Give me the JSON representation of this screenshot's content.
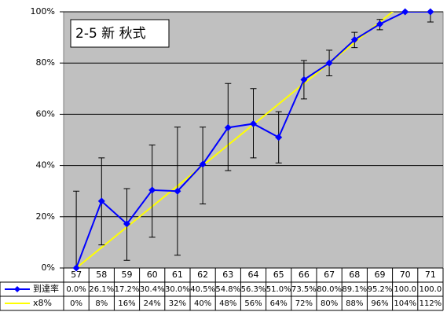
{
  "chart_data": {
    "type": "line",
    "title": "2-5 新 秋式",
    "categories": [
      "57",
      "58",
      "59",
      "60",
      "61",
      "62",
      "63",
      "64",
      "65",
      "66",
      "67",
      "68",
      "69",
      "70",
      "71"
    ],
    "series": [
      {
        "name": "到達率",
        "color": "#0000ff",
        "values": [
          0.0,
          26.1,
          17.2,
          30.4,
          30.0,
          40.5,
          54.8,
          56.3,
          51.0,
          73.5,
          80.0,
          89.1,
          95.2,
          100.0,
          100.0
        ],
        "value_labels": [
          "0.0%",
          "26.1%",
          "17.2%",
          "30.4%",
          "30.0%",
          "40.5%",
          "54.8%",
          "56.3%",
          "51.0%",
          "73.5%",
          "80.0%",
          "89.1%",
          "95.2%",
          "100.0",
          "100.0"
        ],
        "error_low": [
          0,
          9,
          3,
          12,
          5,
          25,
          38,
          43,
          41,
          66,
          75,
          86,
          93,
          100,
          96
        ],
        "error_high": [
          30,
          43,
          31,
          48,
          55,
          55,
          72,
          70,
          61,
          81,
          85,
          92,
          97,
          100,
          100
        ]
      },
      {
        "name": "x8%",
        "color": "#ffff00",
        "values": [
          0,
          8,
          16,
          24,
          32,
          40,
          48,
          56,
          64,
          72,
          80,
          88,
          96,
          104,
          112
        ],
        "value_labels": [
          "0%",
          "8%",
          "16%",
          "24%",
          "32%",
          "40%",
          "48%",
          "56%",
          "64%",
          "72%",
          "80%",
          "88%",
          "96%",
          "104%",
          "112%"
        ]
      }
    ],
    "ylim": [
      0,
      100
    ],
    "yticks": [
      {
        "value": 0,
        "label": "0%"
      },
      {
        "value": 20,
        "label": "20%"
      },
      {
        "value": 40,
        "label": "40%"
      },
      {
        "value": 60,
        "label": "60%"
      },
      {
        "value": 80,
        "label": "80%"
      },
      {
        "value": 100,
        "label": "100%"
      }
    ],
    "grid": true
  }
}
